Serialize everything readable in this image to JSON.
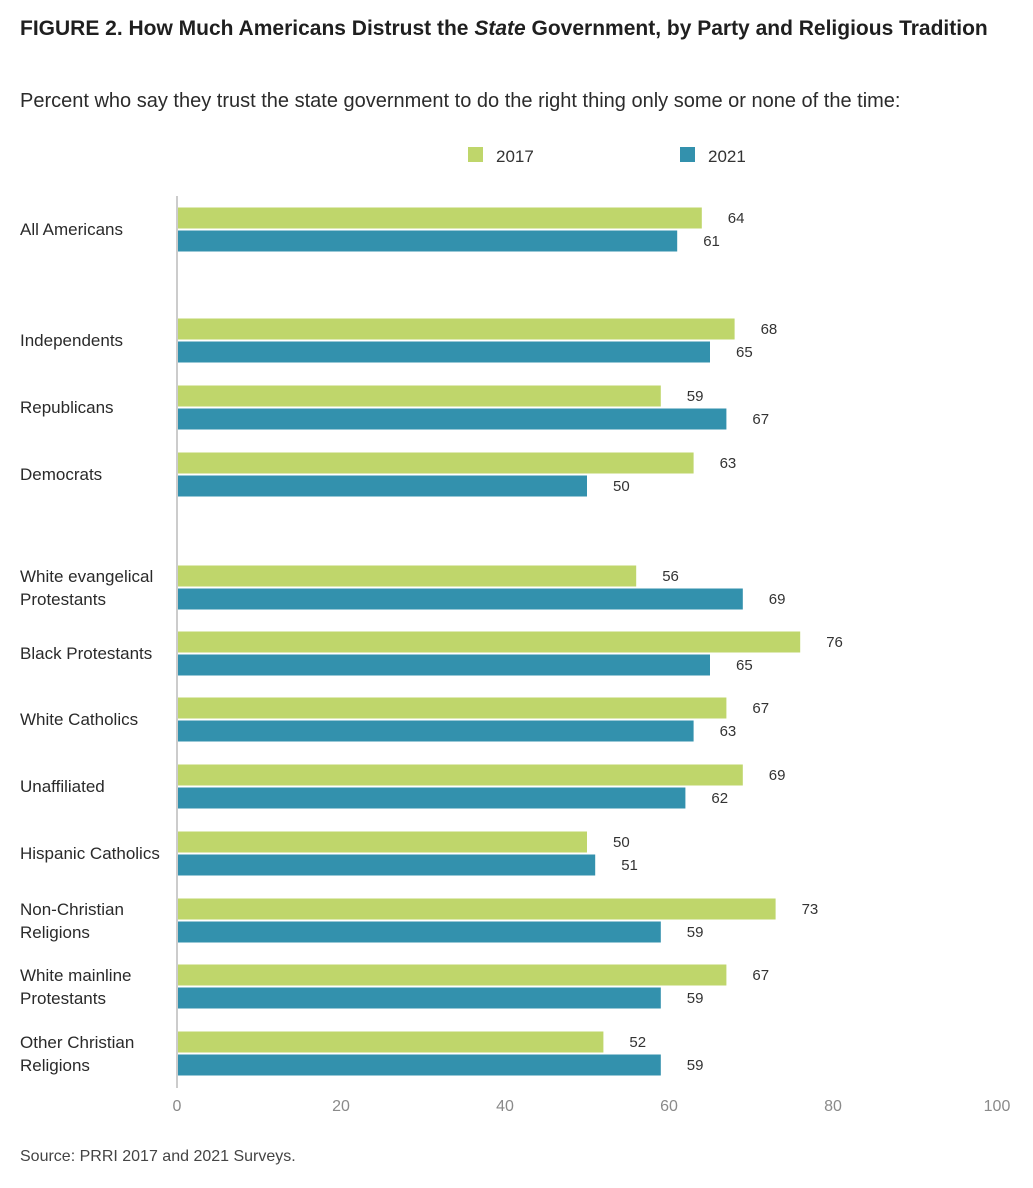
{
  "title": {
    "prefix": "FIGURE 2.  How Much Americans Distrust the ",
    "emphasis": "State",
    "suffix": " Government, by Party and Religious Tradition"
  },
  "subtitle": "Percent who say they trust the state government to do the right thing only some or none of the time:",
  "source": "Source: PRRI 2017 and 2021 Surveys.",
  "colors": {
    "series_2017": "#bfd66b",
    "series_2021": "#3391ad",
    "axis": "#cccccc"
  },
  "chart_data": {
    "type": "bar",
    "orientation": "horizontal",
    "legend_position": "top-center",
    "grid": false,
    "xlim": [
      0,
      100
    ],
    "xticks": [
      "0",
      "20",
      "40",
      "60",
      "80",
      "100"
    ],
    "categories": [
      [
        "All Americans"
      ],
      [
        "Independents"
      ],
      [
        "Republicans"
      ],
      [
        "Democrats"
      ],
      [
        "White evangelical",
        "Protestants"
      ],
      [
        "Black Protestants"
      ],
      [
        "White Catholics"
      ],
      [
        "Unaffiliated"
      ],
      [
        "Hispanic Catholics"
      ],
      [
        "Non-Christian",
        "Religions"
      ],
      [
        "White mainline",
        "Protestants"
      ],
      [
        "Other Christian",
        "Religions"
      ]
    ],
    "series": [
      {
        "name": "2017",
        "values": [
          64,
          68,
          59,
          63,
          56,
          76,
          67,
          69,
          50,
          73,
          67,
          52
        ]
      },
      {
        "name": "2021",
        "values": [
          61,
          65,
          67,
          50,
          69,
          65,
          63,
          62,
          51,
          59,
          59,
          59
        ]
      }
    ]
  }
}
